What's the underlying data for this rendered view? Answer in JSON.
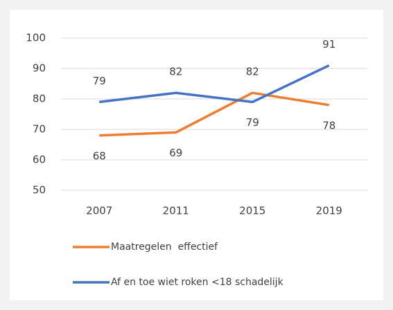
{
  "chart_data": {
    "type": "line",
    "categories": [
      "2007",
      "2011",
      "2015",
      "2019"
    ],
    "series": [
      {
        "name": "Maatregelen  effectief",
        "color": "#ed7d31",
        "values": [
          68,
          69,
          82,
          78
        ]
      },
      {
        "name": "Af en toe wiet roken <18 schadelijk",
        "color": "#4472c4",
        "values": [
          79,
          82,
          79,
          91
        ]
      }
    ],
    "ylim": [
      50,
      100
    ],
    "yticks": [
      50,
      60,
      70,
      80,
      90,
      100
    ],
    "grid": true,
    "legend": "bottom"
  }
}
